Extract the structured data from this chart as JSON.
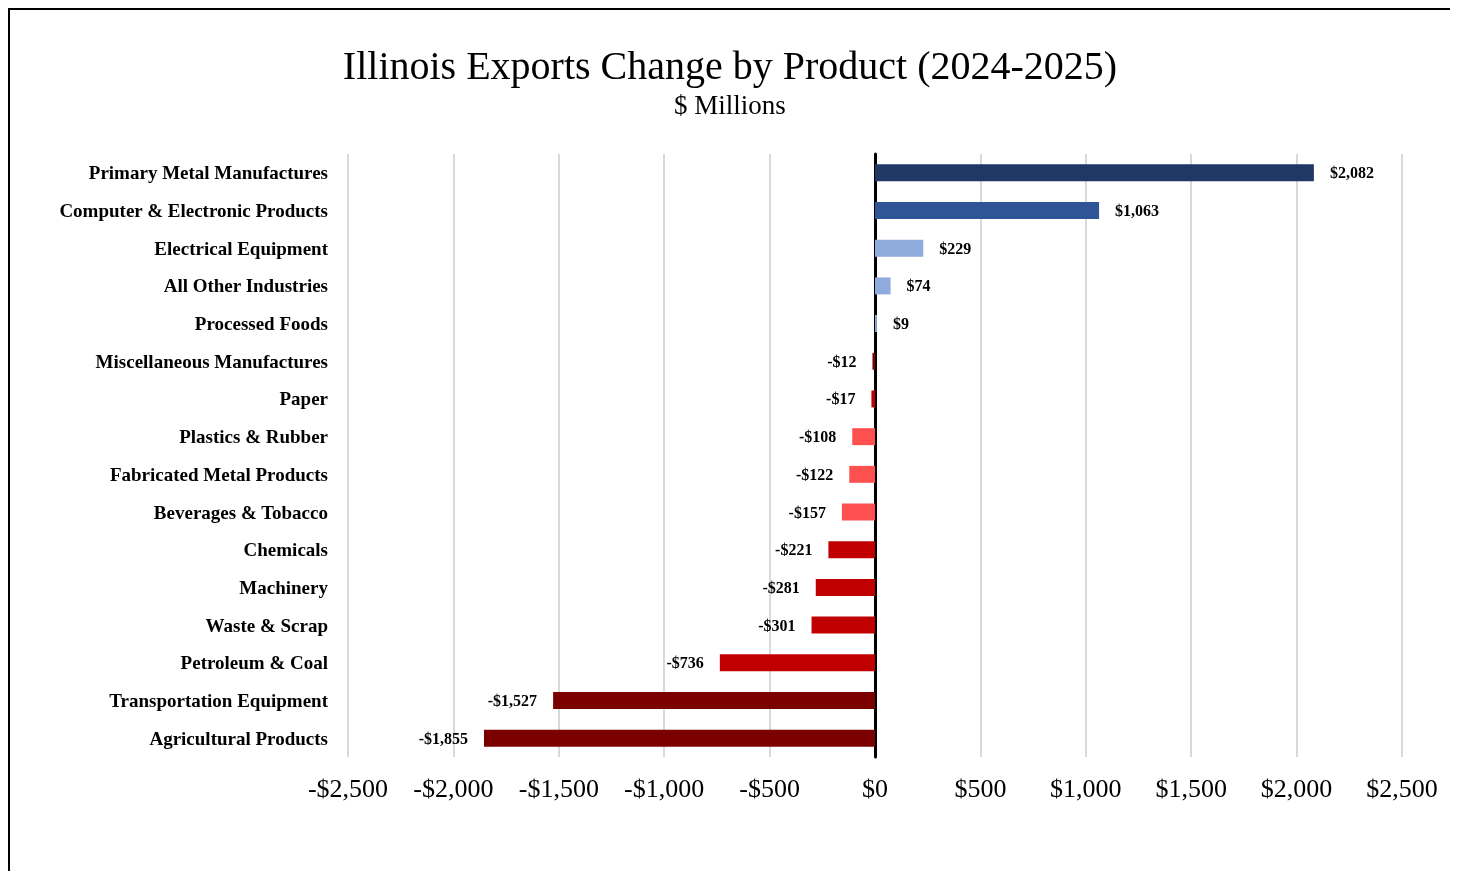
{
  "chart_data": {
    "type": "bar",
    "orientation": "horizontal",
    "title": "Illinois Exports Change by Product (2024-2025)",
    "subtitle": "$ Millions",
    "categories": [
      "Primary Metal Manufactures",
      "Computer & Electronic Products",
      "Electrical Equipment",
      "All Other Industries",
      "Processed Foods",
      "Miscellaneous Manufactures",
      "Paper",
      "Plastics & Rubber",
      "Fabricated Metal Products",
      "Beverages & Tobacco",
      "Chemicals",
      "Machinery",
      "Waste & Scrap",
      "Petroleum & Coal",
      "Transportation Equipment",
      "Agricultural Products"
    ],
    "values": [
      2082,
      1063,
      229,
      74,
      9,
      -12,
      -17,
      -108,
      -122,
      -157,
      -221,
      -281,
      -301,
      -736,
      -1527,
      -1855
    ],
    "value_labels": [
      "$2,082",
      "$1,063",
      "$229",
      "$74",
      "$9",
      "-$12",
      "-$17",
      "-$108",
      "-$122",
      "-$157",
      "-$221",
      "-$281",
      "-$301",
      "-$736",
      "-$1,527",
      "-$1,855"
    ],
    "colors": [
      "#203864",
      "#2f5597",
      "#8faadc",
      "#8faadc",
      "#8faadc",
      "#7b0000",
      "#c00000",
      "#ff5050",
      "#ff5050",
      "#ff5050",
      "#c00000",
      "#c00000",
      "#c00000",
      "#c00000",
      "#7b0000",
      "#7b0000"
    ],
    "xlim": [
      -2500,
      2500
    ],
    "xticks": [
      {
        "value": -2500,
        "label": "-$2,500"
      },
      {
        "value": -2000,
        "label": "-$2,000"
      },
      {
        "value": -1500,
        "label": "-$1,500"
      },
      {
        "value": -1000,
        "label": "-$1,000"
      },
      {
        "value": -500,
        "label": "-$500"
      },
      {
        "value": 0,
        "label": "$0"
      },
      {
        "value": 500,
        "label": "$500"
      },
      {
        "value": 1000,
        "label": "$1,000"
      },
      {
        "value": 1500,
        "label": "$1,500"
      },
      {
        "value": 2000,
        "label": "$2,000"
      },
      {
        "value": 2500,
        "label": "$2,500"
      }
    ],
    "grid": "x"
  }
}
